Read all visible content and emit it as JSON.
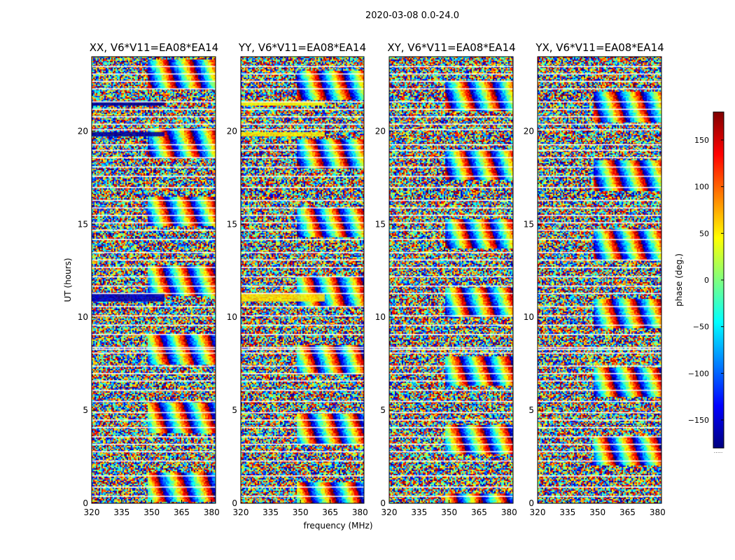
{
  "figure": {
    "suptitle": "2020-03-08 0.0-24.0"
  },
  "colors": {
    "colormap": [
      "#00007f",
      "#0000ff",
      "#007fff",
      "#00ffff",
      "#7fff7f",
      "#ffff00",
      "#ff7f00",
      "#ff0000",
      "#7f0000"
    ],
    "flagged": "#ffffff",
    "background": "#ffffff"
  },
  "chart_data": {
    "type": "heatmap",
    "xlabel": "frequency (MHz)",
    "ylabel": "UT (hours)",
    "xlim": [
      320,
      382
    ],
    "ylim": [
      0,
      24
    ],
    "xticks": [
      320,
      335,
      350,
      365,
      380
    ],
    "yticks": [
      0,
      5,
      10,
      15,
      20
    ],
    "colorbar": {
      "label": "phase (deg.)",
      "range": [
        -180,
        180
      ],
      "ticks": [
        150,
        100,
        50,
        0,
        -50,
        -100,
        -150
      ],
      "tick_labels": [
        "150",
        "100",
        "50",
        "0",
        "−50",
        "−100",
        "−150"
      ],
      "below_label": "....."
    },
    "flagged_rows_hours": [
      0.4,
      0.9,
      1.5,
      2.3,
      2.8,
      3.2,
      3.6,
      4.1,
      4.5,
      4.9,
      5.5,
      6.1,
      6.6,
      7.0,
      7.4,
      8.1,
      8.3,
      8.4,
      9.1,
      9.6,
      10.1,
      10.6,
      11.3,
      11.7,
      12.2,
      12.7,
      13.1,
      13.5,
      14.2,
      14.7,
      15.1,
      15.5,
      15.9,
      16.3,
      17.0,
      17.6,
      18.1,
      18.6,
      19.0,
      19.3,
      20.1,
      20.4,
      20.8,
      21.2,
      21.6,
      22.3,
      22.7,
      23.1,
      23.5
    ],
    "panels": [
      {
        "title": "XX, V6*V11=EA08*EA14",
        "bands": [
          {
            "from": 10.9,
            "to": 11.3,
            "phase": -160,
            "until": 356
          },
          {
            "from": 19.75,
            "to": 19.95,
            "phase": -170,
            "until": 356
          },
          {
            "from": 21.4,
            "to": 21.6,
            "phase": -175,
            "until": 356
          }
        ]
      },
      {
        "title": "YY, V6*V11=EA08*EA14",
        "bands": [
          {
            "from": 10.9,
            "to": 11.3,
            "phase": 55,
            "until": 362
          },
          {
            "from": 19.75,
            "to": 19.95,
            "phase": 50,
            "until": 362
          },
          {
            "from": 21.4,
            "to": 21.6,
            "phase": 45,
            "until": 362
          }
        ]
      },
      {
        "title": "XY, V6*V11=EA08*EA14",
        "bands": []
      },
      {
        "title": "YX, V6*V11=EA08*EA14",
        "bands": []
      }
    ]
  }
}
